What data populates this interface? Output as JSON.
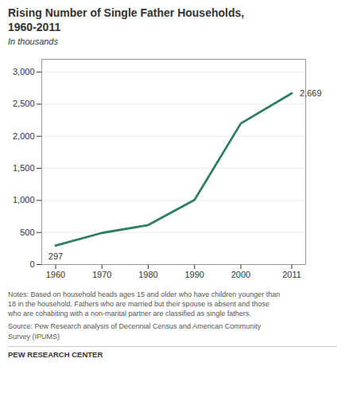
{
  "chart_data": {
    "type": "line",
    "title": "Rising Number of Single Father Households,\n1960-2011",
    "subtitle": "In thousands",
    "x": [
      1960,
      1970,
      1980,
      1990,
      2000,
      2011
    ],
    "values": [
      297,
      493,
      616,
      1008,
      2200,
      2669
    ],
    "color": "#2E7D64",
    "xlim": [
      1957,
      2014
    ],
    "xticks": [
      1960,
      1970,
      1980,
      1990,
      2000,
      2011
    ],
    "ylim": [
      0,
      3200
    ],
    "yticks": [
      0,
      500,
      {
        "value": 1000,
        "label": "1,000"
      },
      {
        "value": 1500,
        "label": "1,500"
      },
      {
        "value": 2000,
        "label": "2,000"
      },
      {
        "value": 2500,
        "label": "2,500"
      },
      {
        "value": 3000,
        "label": "3,000"
      }
    ],
    "grid": true,
    "annotations": [
      {
        "text": "297",
        "x": 1960,
        "y": 297
      },
      {
        "text": "2,669",
        "x": 2011,
        "y": 2669
      }
    ],
    "notes": "Notes: Based on household heads ages 15 and older who have children younger than\n18 in the household. Fathers who  are married but their spouse is absent and those\nwho are cohabiting with a non-marital partner are classified as single fathers.",
    "source": "Source: Pew Research analysis of Decennial Census and American Community\nSurvey (IPUMS)",
    "footer": "PEW RESEARCH CENTER"
  }
}
